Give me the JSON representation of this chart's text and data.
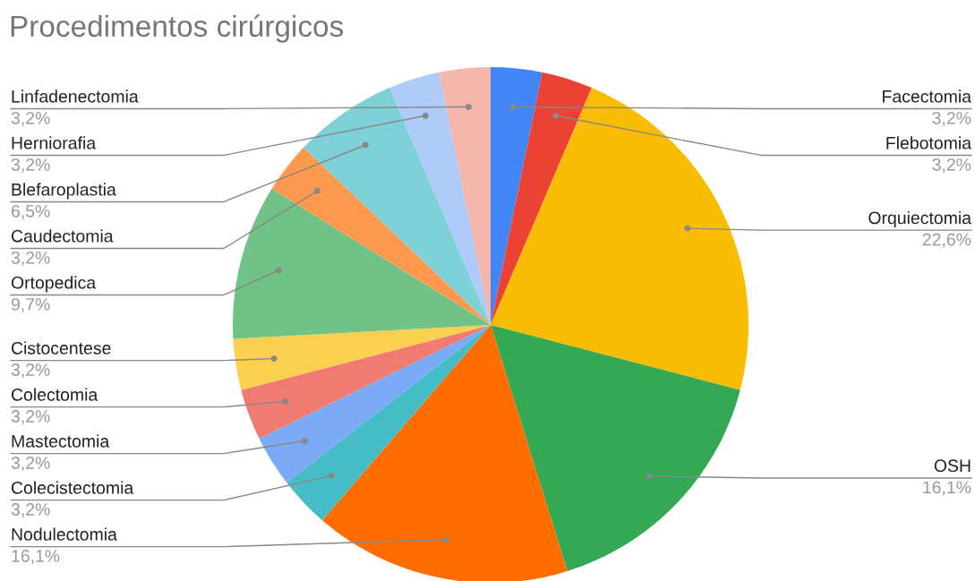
{
  "chart_data": {
    "type": "pie",
    "title": "Procedimentos cirúrgicos",
    "categories": [
      "Facectomia",
      "Flebotomia",
      "Orquiectomia",
      "OSH",
      "Nodulectomia",
      "Colecistectomia",
      "Mastectomia",
      "Colectomia",
      "Cistocentese",
      "Ortopedica",
      "Caudectomia",
      "Blefaroplastia",
      "Herniorafia",
      "Linfadenectomia"
    ],
    "values": [
      3.2,
      3.2,
      22.6,
      16.1,
      16.1,
      3.2,
      3.2,
      3.2,
      3.2,
      9.7,
      3.2,
      6.5,
      3.2,
      3.2
    ],
    "value_labels": [
      "3,2%",
      "3,2%",
      "22,6%",
      "16,1%",
      "16,1%",
      "3,2%",
      "3,2%",
      "3,2%",
      "3,2%",
      "9,7%",
      "3,2%",
      "6,5%",
      "3,2%",
      "3,2%"
    ],
    "colors": [
      "#4285f4",
      "#ea4335",
      "#fbbc04",
      "#34a853",
      "#ff6d01",
      "#46bdc6",
      "#7baaf7",
      "#f07b72",
      "#fcd04f",
      "#71c287",
      "#ff994d",
      "#7ed1d7",
      "#aecbfa",
      "#f4b6ad"
    ]
  }
}
